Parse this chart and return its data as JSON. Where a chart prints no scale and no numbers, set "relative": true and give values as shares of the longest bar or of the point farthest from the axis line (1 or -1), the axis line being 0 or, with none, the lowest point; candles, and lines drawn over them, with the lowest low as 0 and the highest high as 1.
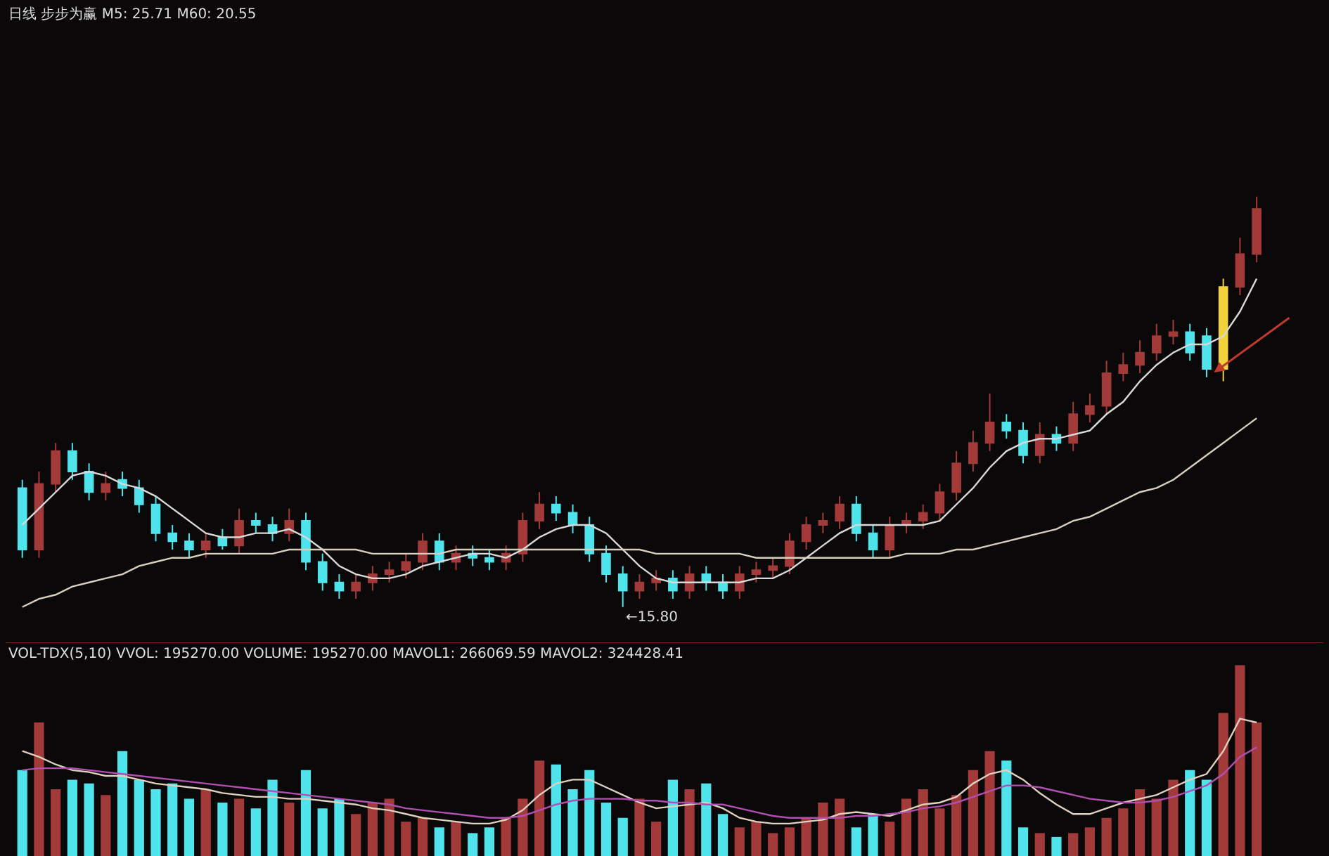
{
  "chart_data": [
    {
      "type": "candlestick",
      "title": "日线 步步为赢 M5: 25.71 M60: 20.55",
      "relative": true,
      "categories": [
        null,
        null,
        null,
        null,
        null,
        null,
        null,
        null,
        null,
        null,
        null,
        null,
        null,
        null,
        null,
        null,
        null,
        null,
        null,
        null,
        null,
        null,
        null,
        null,
        null,
        null,
        null,
        null,
        null,
        null,
        null,
        null,
        null,
        null,
        null,
        null,
        null,
        null,
        null,
        null,
        null,
        null,
        null,
        null,
        null,
        null,
        null,
        null,
        null,
        null,
        null,
        null,
        null,
        null,
        null,
        null,
        null,
        null,
        null,
        null,
        null,
        null,
        null,
        null,
        null,
        null,
        null,
        null,
        null,
        null,
        null,
        null,
        null,
        null,
        null
      ],
      "ohlc": [
        [
          0.29,
          0.31,
          0.12,
          0.14
        ],
        [
          0.14,
          0.33,
          0.12,
          0.3
        ],
        [
          0.3,
          0.4,
          0.28,
          0.38
        ],
        [
          0.38,
          0.4,
          0.31,
          0.33
        ],
        [
          0.33,
          0.35,
          0.26,
          0.28
        ],
        [
          0.28,
          0.33,
          0.26,
          0.3
        ],
        [
          0.31,
          0.33,
          0.27,
          0.29
        ],
        [
          0.29,
          0.31,
          0.23,
          0.25
        ],
        [
          0.25,
          0.27,
          0.16,
          0.18
        ],
        [
          0.18,
          0.2,
          0.14,
          0.16
        ],
        [
          0.16,
          0.18,
          0.12,
          0.14
        ],
        [
          0.14,
          0.18,
          0.12,
          0.16
        ],
        [
          0.17,
          0.19,
          0.14,
          0.15
        ],
        [
          0.15,
          0.24,
          0.13,
          0.21
        ],
        [
          0.21,
          0.23,
          0.18,
          0.2
        ],
        [
          0.2,
          0.22,
          0.16,
          0.18
        ],
        [
          0.18,
          0.24,
          0.16,
          0.21
        ],
        [
          0.21,
          0.23,
          0.09,
          0.11
        ],
        [
          0.11,
          0.13,
          0.04,
          0.06
        ],
        [
          0.06,
          0.08,
          0.02,
          0.04
        ],
        [
          0.04,
          0.08,
          0.02,
          0.06
        ],
        [
          0.06,
          0.1,
          0.04,
          0.08
        ],
        [
          0.08,
          0.11,
          0.06,
          0.09
        ],
        [
          0.09,
          0.13,
          0.07,
          0.11
        ],
        [
          0.11,
          0.18,
          0.09,
          0.16
        ],
        [
          0.16,
          0.18,
          0.09,
          0.11
        ],
        [
          0.11,
          0.15,
          0.09,
          0.13
        ],
        [
          0.13,
          0.15,
          0.1,
          0.12
        ],
        [
          0.12,
          0.14,
          0.09,
          0.11
        ],
        [
          0.11,
          0.15,
          0.09,
          0.13
        ],
        [
          0.13,
          0.23,
          0.11,
          0.21
        ],
        [
          0.21,
          0.28,
          0.19,
          0.25
        ],
        [
          0.25,
          0.27,
          0.21,
          0.23
        ],
        [
          0.23,
          0.25,
          0.18,
          0.2
        ],
        [
          0.2,
          0.22,
          0.11,
          0.13
        ],
        [
          0.13,
          0.15,
          0.06,
          0.08
        ],
        [
          0.08,
          0.1,
          0.0,
          0.04
        ],
        [
          0.04,
          0.08,
          0.02,
          0.06
        ],
        [
          0.06,
          0.09,
          0.04,
          0.07
        ],
        [
          0.07,
          0.09,
          0.02,
          0.04
        ],
        [
          0.04,
          0.1,
          0.02,
          0.08
        ],
        [
          0.08,
          0.1,
          0.04,
          0.06
        ],
        [
          0.06,
          0.08,
          0.02,
          0.04
        ],
        [
          0.04,
          0.1,
          0.02,
          0.08
        ],
        [
          0.08,
          0.11,
          0.06,
          0.09
        ],
        [
          0.09,
          0.12,
          0.07,
          0.1
        ],
        [
          0.1,
          0.18,
          0.08,
          0.16
        ],
        [
          0.16,
          0.22,
          0.14,
          0.2
        ],
        [
          0.2,
          0.23,
          0.18,
          0.21
        ],
        [
          0.21,
          0.27,
          0.19,
          0.25
        ],
        [
          0.25,
          0.27,
          0.16,
          0.18
        ],
        [
          0.18,
          0.2,
          0.12,
          0.14
        ],
        [
          0.14,
          0.22,
          0.12,
          0.2
        ],
        [
          0.2,
          0.23,
          0.18,
          0.21
        ],
        [
          0.21,
          0.25,
          0.19,
          0.23
        ],
        [
          0.23,
          0.3,
          0.21,
          0.28
        ],
        [
          0.28,
          0.38,
          0.26,
          0.35
        ],
        [
          0.35,
          0.43,
          0.33,
          0.4
        ],
        [
          0.4,
          0.52,
          0.38,
          0.45
        ],
        [
          0.45,
          0.47,
          0.41,
          0.43
        ],
        [
          0.43,
          0.45,
          0.35,
          0.37
        ],
        [
          0.37,
          0.45,
          0.35,
          0.42
        ],
        [
          0.42,
          0.44,
          0.38,
          0.4
        ],
        [
          0.4,
          0.5,
          0.38,
          0.47
        ],
        [
          0.47,
          0.52,
          0.45,
          0.49
        ],
        [
          0.49,
          0.6,
          0.47,
          0.57
        ],
        [
          0.57,
          0.62,
          0.55,
          0.59
        ],
        [
          0.59,
          0.65,
          0.57,
          0.62
        ],
        [
          0.62,
          0.69,
          0.6,
          0.66
        ],
        [
          0.66,
          0.7,
          0.64,
          0.67
        ],
        [
          0.67,
          0.69,
          0.6,
          0.62
        ],
        [
          0.66,
          0.68,
          0.56,
          0.58
        ],
        [
          0.58,
          0.8,
          0.55,
          0.78
        ],
        [
          0.78,
          0.9,
          0.76,
          0.86
        ],
        [
          0.86,
          1.0,
          0.84,
          0.97
        ]
      ],
      "colors": [
        "#4fe3ec",
        "#a33a3a",
        "#a33a3a",
        "#4fe3ec",
        "#4fe3ec",
        "#a33a3a",
        "#4fe3ec",
        "#4fe3ec",
        "#4fe3ec",
        "#4fe3ec",
        "#4fe3ec",
        "#a33a3a",
        "#4fe3ec",
        "#a33a3a",
        "#4fe3ec",
        "#4fe3ec",
        "#a33a3a",
        "#4fe3ec",
        "#4fe3ec",
        "#4fe3ec",
        "#a33a3a",
        "#a33a3a",
        "#a33a3a",
        "#a33a3a",
        "#a33a3a",
        "#4fe3ec",
        "#a33a3a",
        "#4fe3ec",
        "#4fe3ec",
        "#a33a3a",
        "#a33a3a",
        "#a33a3a",
        "#4fe3ec",
        "#4fe3ec",
        "#4fe3ec",
        "#4fe3ec",
        "#4fe3ec",
        "#a33a3a",
        "#a33a3a",
        "#4fe3ec",
        "#a33a3a",
        "#4fe3ec",
        "#4fe3ec",
        "#a33a3a",
        "#a33a3a",
        "#a33a3a",
        "#a33a3a",
        "#a33a3a",
        "#a33a3a",
        "#a33a3a",
        "#4fe3ec",
        "#4fe3ec",
        "#a33a3a",
        "#a33a3a",
        "#a33a3a",
        "#a33a3a",
        "#a33a3a",
        "#a33a3a",
        "#a33a3a",
        "#4fe3ec",
        "#4fe3ec",
        "#a33a3a",
        "#4fe3ec",
        "#a33a3a",
        "#a33a3a",
        "#a33a3a",
        "#a33a3a",
        "#a33a3a",
        "#a33a3a",
        "#a33a3a",
        "#4fe3ec",
        "#4fe3ec",
        "#f2d23c",
        "#a33a3a",
        "#a33a3a"
      ],
      "series": [
        {
          "type": "line",
          "color": "#d9d9d9",
          "values": [
            0.2,
            0.24,
            0.28,
            0.32,
            0.33,
            0.32,
            0.3,
            0.29,
            0.27,
            0.24,
            0.21,
            0.18,
            0.17,
            0.17,
            0.18,
            0.18,
            0.19,
            0.17,
            0.14,
            0.1,
            0.08,
            0.07,
            0.07,
            0.08,
            0.1,
            0.11,
            0.12,
            0.13,
            0.13,
            0.12,
            0.14,
            0.17,
            0.19,
            0.2,
            0.2,
            0.18,
            0.14,
            0.1,
            0.07,
            0.06,
            0.06,
            0.06,
            0.06,
            0.06,
            0.07,
            0.07,
            0.09,
            0.12,
            0.15,
            0.18,
            0.2,
            0.2,
            0.2,
            0.2,
            0.2,
            0.21,
            0.25,
            0.29,
            0.34,
            0.38,
            0.4,
            0.41,
            0.41,
            0.42,
            0.43,
            0.47,
            0.5,
            0.55,
            0.59,
            0.62,
            0.64,
            0.64,
            0.66,
            0.72,
            0.8
          ]
        },
        {
          "type": "line",
          "color": "#d8cfbf",
          "values": [
            0.0,
            0.02,
            0.03,
            0.05,
            0.06,
            0.07,
            0.08,
            0.1,
            0.11,
            0.12,
            0.12,
            0.13,
            0.13,
            0.13,
            0.13,
            0.13,
            0.14,
            0.14,
            0.14,
            0.14,
            0.14,
            0.13,
            0.13,
            0.13,
            0.13,
            0.13,
            0.14,
            0.14,
            0.14,
            0.14,
            0.14,
            0.14,
            0.14,
            0.14,
            0.14,
            0.14,
            0.14,
            0.14,
            0.13,
            0.13,
            0.13,
            0.13,
            0.13,
            0.13,
            0.12,
            0.12,
            0.12,
            0.12,
            0.12,
            0.12,
            0.12,
            0.12,
            0.12,
            0.13,
            0.13,
            0.13,
            0.14,
            0.14,
            0.15,
            0.16,
            0.17,
            0.18,
            0.19,
            0.21,
            0.22,
            0.24,
            0.26,
            0.28,
            0.29,
            0.31,
            0.34,
            0.37,
            0.4,
            0.43,
            0.46
          ]
        }
      ],
      "annotations": [
        "←15.80"
      ]
    },
    {
      "type": "bar",
      "title": "VOL-TDX(5,10) VVOL: 195270.00 VOLUME: 195270.00 MAVOL1: 266069.59 MAVOL2: 324428.41",
      "relative": true,
      "categories": [
        null,
        null,
        null,
        null,
        null,
        null,
        null,
        null,
        null,
        null,
        null,
        null,
        null,
        null,
        null,
        null,
        null,
        null,
        null,
        null,
        null,
        null,
        null,
        null,
        null,
        null,
        null,
        null,
        null,
        null,
        null,
        null,
        null,
        null,
        null,
        null,
        null,
        null,
        null,
        null,
        null,
        null,
        null,
        null,
        null,
        null,
        null,
        null,
        null,
        null,
        null,
        null,
        null,
        null,
        null,
        null,
        null,
        null,
        null,
        null,
        null,
        null,
        null,
        null,
        null,
        null,
        null,
        null,
        null,
        null,
        null,
        null,
        null,
        null,
        null
      ],
      "series": [
        {
          "type": "bar",
          "values": [
            0.45,
            0.7,
            0.35,
            0.4,
            0.38,
            0.32,
            0.55,
            0.4,
            0.35,
            0.38,
            0.3,
            0.35,
            0.28,
            0.3,
            0.25,
            0.4,
            0.28,
            0.45,
            0.25,
            0.3,
            0.22,
            0.28,
            0.3,
            0.18,
            0.2,
            0.15,
            0.18,
            0.12,
            0.15,
            0.2,
            0.3,
            0.5,
            0.48,
            0.35,
            0.45,
            0.28,
            0.2,
            0.3,
            0.18,
            0.4,
            0.35,
            0.38,
            0.22,
            0.15,
            0.18,
            0.12,
            0.15,
            0.2,
            0.28,
            0.3,
            0.15,
            0.22,
            0.18,
            0.3,
            0.35,
            0.25,
            0.32,
            0.45,
            0.55,
            0.5,
            0.15,
            0.12,
            0.1,
            0.12,
            0.15,
            0.2,
            0.25,
            0.35,
            0.3,
            0.4,
            0.45,
            0.4,
            0.75,
            1.0,
            0.7
          ],
          "colors": [
            "#4fe3ec",
            "#a33a3a",
            "#a33a3a",
            "#4fe3ec",
            "#4fe3ec",
            "#a33a3a",
            "#4fe3ec",
            "#4fe3ec",
            "#4fe3ec",
            "#4fe3ec",
            "#4fe3ec",
            "#a33a3a",
            "#4fe3ec",
            "#a33a3a",
            "#4fe3ec",
            "#4fe3ec",
            "#a33a3a",
            "#4fe3ec",
            "#4fe3ec",
            "#4fe3ec",
            "#a33a3a",
            "#a33a3a",
            "#a33a3a",
            "#a33a3a",
            "#a33a3a",
            "#4fe3ec",
            "#a33a3a",
            "#4fe3ec",
            "#4fe3ec",
            "#a33a3a",
            "#a33a3a",
            "#a33a3a",
            "#4fe3ec",
            "#4fe3ec",
            "#4fe3ec",
            "#4fe3ec",
            "#4fe3ec",
            "#a33a3a",
            "#a33a3a",
            "#4fe3ec",
            "#a33a3a",
            "#4fe3ec",
            "#4fe3ec",
            "#a33a3a",
            "#a33a3a",
            "#a33a3a",
            "#a33a3a",
            "#a33a3a",
            "#a33a3a",
            "#a33a3a",
            "#4fe3ec",
            "#4fe3ec",
            "#a33a3a",
            "#a33a3a",
            "#a33a3a",
            "#a33a3a",
            "#a33a3a",
            "#a33a3a",
            "#a33a3a",
            "#4fe3ec",
            "#4fe3ec",
            "#a33a3a",
            "#4fe3ec",
            "#a33a3a",
            "#a33a3a",
            "#a33a3a",
            "#a33a3a",
            "#a33a3a",
            "#a33a3a",
            "#a33a3a",
            "#4fe3ec",
            "#4fe3ec",
            "#a33a3a",
            "#a33a3a",
            "#a33a3a"
          ]
        },
        {
          "type": "line",
          "color": "#e0d0c0",
          "values": [
            0.55,
            0.52,
            0.48,
            0.45,
            0.44,
            0.42,
            0.42,
            0.4,
            0.38,
            0.37,
            0.36,
            0.35,
            0.33,
            0.32,
            0.31,
            0.31,
            0.3,
            0.3,
            0.29,
            0.28,
            0.27,
            0.25,
            0.24,
            0.22,
            0.2,
            0.19,
            0.18,
            0.17,
            0.17,
            0.19,
            0.24,
            0.32,
            0.38,
            0.4,
            0.4,
            0.36,
            0.32,
            0.28,
            0.25,
            0.26,
            0.27,
            0.28,
            0.25,
            0.2,
            0.18,
            0.17,
            0.17,
            0.18,
            0.19,
            0.22,
            0.23,
            0.22,
            0.21,
            0.24,
            0.27,
            0.28,
            0.31,
            0.38,
            0.43,
            0.45,
            0.4,
            0.33,
            0.27,
            0.22,
            0.22,
            0.25,
            0.28,
            0.3,
            0.32,
            0.36,
            0.4,
            0.43,
            0.55,
            0.72,
            0.7
          ]
        },
        {
          "type": "line",
          "color": "#b04fb0",
          "values": [
            0.45,
            0.46,
            0.46,
            0.46,
            0.45,
            0.44,
            0.43,
            0.42,
            0.41,
            0.4,
            0.39,
            0.38,
            0.37,
            0.36,
            0.35,
            0.34,
            0.33,
            0.32,
            0.31,
            0.3,
            0.29,
            0.28,
            0.27,
            0.25,
            0.24,
            0.23,
            0.22,
            0.21,
            0.2,
            0.2,
            0.21,
            0.24,
            0.27,
            0.29,
            0.3,
            0.3,
            0.3,
            0.29,
            0.29,
            0.28,
            0.28,
            0.27,
            0.27,
            0.25,
            0.23,
            0.21,
            0.2,
            0.2,
            0.2,
            0.2,
            0.21,
            0.21,
            0.22,
            0.23,
            0.25,
            0.26,
            0.28,
            0.31,
            0.34,
            0.37,
            0.37,
            0.36,
            0.34,
            0.32,
            0.3,
            0.29,
            0.28,
            0.28,
            0.29,
            0.31,
            0.34,
            0.37,
            0.43,
            0.52,
            0.57
          ]
        }
      ]
    }
  ]
}
